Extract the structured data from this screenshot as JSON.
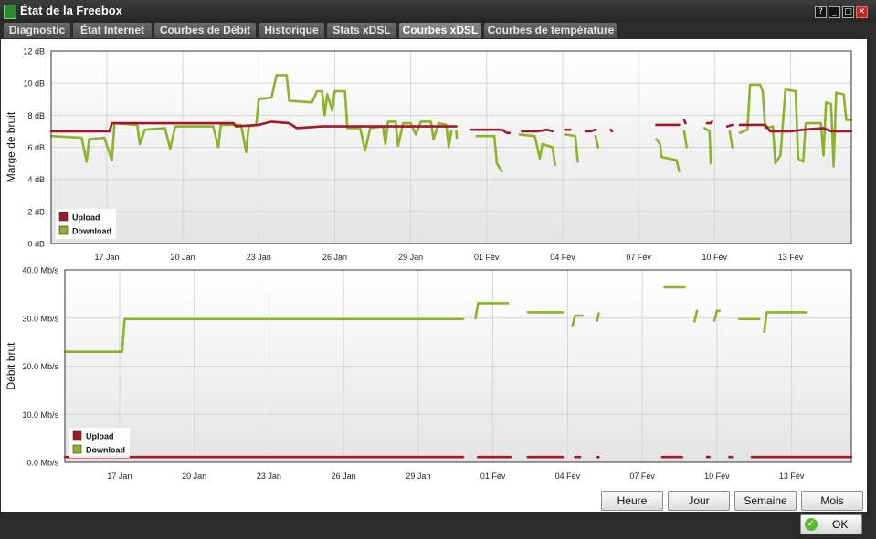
{
  "window": {
    "title": "État de la Freebox",
    "controls": [
      "?",
      "_",
      "□",
      "✕"
    ]
  },
  "tabs": [
    {
      "label": "Diagnostic",
      "active": false
    },
    {
      "label": "État Internet",
      "active": false
    },
    {
      "label": "Courbes de Débit",
      "active": false
    },
    {
      "label": "Historique",
      "active": false
    },
    {
      "label": "Stats xDSL",
      "active": false
    },
    {
      "label": "Courbes xDSL",
      "active": true
    },
    {
      "label": "Courbes de température",
      "active": false
    }
  ],
  "colors": {
    "upload": "#a3172a",
    "download": "#8db32a",
    "grid": "#d6d6d6"
  },
  "chart_data": [
    {
      "type": "line",
      "ylabel": "Marge de bruit",
      "ylim": [
        0,
        12
      ],
      "yticks": [
        "0 dB",
        "2 dB",
        "4 dB",
        "6 dB",
        "8 dB",
        "10 dB",
        "12 dB"
      ],
      "xlim": [
        14.8,
        46.4
      ],
      "xticks": [
        {
          "day": 17,
          "label": "17 Jan"
        },
        {
          "day": 20,
          "label": "20 Jan"
        },
        {
          "day": 23,
          "label": "23 Jan"
        },
        {
          "day": 26,
          "label": "26 Jan"
        },
        {
          "day": 29,
          "label": "29 Jan"
        },
        {
          "day": 32,
          "label": "01 Fév"
        },
        {
          "day": 35,
          "label": "04 Fév"
        },
        {
          "day": 38,
          "label": "07 Fév"
        },
        {
          "day": 41,
          "label": "10 Fév"
        },
        {
          "day": 44,
          "label": "13 Fév"
        }
      ],
      "legend": "bottom-left",
      "series": [
        {
          "name": "Upload",
          "segments": [
            [
              [
                14.8,
                7.0
              ],
              [
                17.1,
                7.0
              ],
              [
                17.2,
                7.5
              ],
              [
                22.0,
                7.5
              ],
              [
                22.1,
                7.3
              ],
              [
                23.0,
                7.4
              ],
              [
                23.5,
                7.6
              ],
              [
                24.2,
                7.5
              ],
              [
                24.5,
                7.2
              ],
              [
                25.5,
                7.3
              ],
              [
                30.8,
                7.3
              ]
            ],
            [
              [
                31.4,
                7.1
              ],
              [
                32.6,
                7.1
              ],
              [
                32.8,
                6.9
              ],
              [
                32.9,
                6.9
              ]
            ],
            [
              [
                33.4,
                7.0
              ],
              [
                34.0,
                7.0
              ],
              [
                34.4,
                7.1
              ],
              [
                34.6,
                7.0
              ]
            ],
            [
              [
                35.1,
                7.1
              ],
              [
                35.3,
                7.1
              ]
            ],
            [
              [
                35.9,
                7.0
              ],
              [
                36.1,
                7.0
              ],
              [
                36.3,
                7.1
              ]
            ],
            [
              [
                36.9,
                7.1
              ],
              [
                36.95,
                7.0
              ]
            ],
            [
              [
                38.7,
                7.4
              ],
              [
                39.6,
                7.4
              ]
            ],
            [
              [
                39.8,
                7.7
              ],
              [
                39.85,
                7.5
              ]
            ],
            [
              [
                40.7,
                7.5
              ],
              [
                40.85,
                7.5
              ],
              [
                40.9,
                7.6
              ]
            ],
            [
              [
                41.5,
                7.3
              ],
              [
                41.7,
                7.4
              ]
            ],
            [
              [
                42.0,
                7.4
              ],
              [
                43.0,
                7.4
              ],
              [
                43.2,
                7.0
              ],
              [
                44.0,
                7.0
              ],
              [
                44.5,
                7.1
              ],
              [
                45.3,
                7.2
              ],
              [
                45.6,
                7.0
              ],
              [
                46.4,
                7.0
              ]
            ]
          ]
        },
        {
          "name": "Download",
          "segments": [
            [
              [
                14.8,
                6.7
              ],
              [
                16.0,
                6.6
              ],
              [
                16.2,
                5.1
              ],
              [
                16.3,
                6.5
              ],
              [
                16.9,
                6.6
              ],
              [
                17.2,
                5.2
              ],
              [
                17.3,
                7.5
              ],
              [
                18.2,
                7.4
              ],
              [
                18.3,
                6.2
              ],
              [
                18.5,
                7.1
              ],
              [
                19.3,
                7.2
              ],
              [
                19.5,
                5.9
              ],
              [
                19.7,
                7.3
              ],
              [
                21.2,
                7.3
              ],
              [
                21.4,
                6.0
              ],
              [
                21.5,
                7.4
              ],
              [
                22.3,
                7.4
              ],
              [
                22.5,
                5.7
              ],
              [
                22.6,
                7.3
              ],
              [
                22.9,
                7.4
              ],
              [
                23.0,
                9.0
              ],
              [
                23.5,
                9.1
              ],
              [
                23.7,
                10.5
              ],
              [
                24.1,
                10.5
              ],
              [
                24.2,
                8.9
              ],
              [
                25.1,
                8.8
              ],
              [
                25.3,
                9.5
              ],
              [
                25.5,
                9.5
              ],
              [
                25.6,
                8.0
              ],
              [
                25.7,
                9.3
              ],
              [
                25.9,
                8.3
              ],
              [
                26.0,
                9.5
              ],
              [
                26.4,
                9.5
              ],
              [
                26.5,
                7.2
              ],
              [
                27.0,
                7.2
              ],
              [
                27.2,
                5.8
              ],
              [
                27.4,
                7.2
              ],
              [
                27.9,
                7.3
              ],
              [
                28.0,
                6.2
              ],
              [
                28.1,
                7.6
              ],
              [
                28.4,
                7.6
              ],
              [
                28.5,
                6.1
              ],
              [
                28.7,
                7.5
              ],
              [
                29.0,
                7.5
              ],
              [
                29.2,
                6.8
              ],
              [
                29.4,
                7.6
              ],
              [
                29.8,
                7.6
              ],
              [
                29.9,
                6.5
              ],
              [
                30.1,
                7.5
              ],
              [
                30.4,
                7.4
              ],
              [
                30.5,
                6.0
              ],
              [
                30.6,
                7.0
              ]
            ],
            [
              [
                30.8,
                7.0
              ],
              [
                30.82,
                6.6
              ]
            ],
            [
              [
                31.6,
                6.7
              ],
              [
                32.3,
                6.7
              ],
              [
                32.4,
                5.0
              ],
              [
                32.6,
                4.5
              ]
            ],
            [
              [
                33.3,
                6.8
              ],
              [
                33.9,
                6.7
              ],
              [
                34.1,
                5.3
              ],
              [
                34.2,
                6.2
              ],
              [
                34.6,
                6.0
              ],
              [
                34.7,
                4.9
              ]
            ],
            [
              [
                35.1,
                6.8
              ],
              [
                35.5,
                6.7
              ],
              [
                35.6,
                5.1
              ]
            ],
            [
              [
                36.3,
                6.7
              ],
              [
                36.4,
                6.0
              ]
            ],
            [
              [
                38.7,
                6.5
              ],
              [
                38.85,
                6.2
              ],
              [
                38.9,
                5.4
              ],
              [
                39.5,
                5.2
              ],
              [
                39.6,
                4.5
              ]
            ],
            [
              [
                39.8,
                7.0
              ],
              [
                39.9,
                6.0
              ]
            ],
            [
              [
                40.6,
                7.2
              ],
              [
                40.8,
                7.0
              ],
              [
                40.85,
                5.0
              ]
            ],
            [
              [
                41.6,
                7.0
              ],
              [
                41.7,
                6.0
              ]
            ],
            [
              [
                42.0,
                6.9
              ],
              [
                42.3,
                7.1
              ],
              [
                42.4,
                9.9
              ],
              [
                42.8,
                9.9
              ],
              [
                42.9,
                9.5
              ],
              [
                43.0,
                7.2
              ],
              [
                43.3,
                7.3
              ],
              [
                43.4,
                5.0
              ],
              [
                43.6,
                5.5
              ],
              [
                43.8,
                9.6
              ],
              [
                44.2,
                9.5
              ],
              [
                44.3,
                5.3
              ],
              [
                44.5,
                5.1
              ],
              [
                44.6,
                7.5
              ],
              [
                45.2,
                7.5
              ],
              [
                45.3,
                5.5
              ],
              [
                45.4,
                8.8
              ],
              [
                45.6,
                8.7
              ],
              [
                45.7,
                4.8
              ],
              [
                45.8,
                9.4
              ],
              [
                46.1,
                9.3
              ],
              [
                46.2,
                7.7
              ],
              [
                46.4,
                7.7
              ]
            ]
          ]
        }
      ]
    },
    {
      "type": "line",
      "ylabel": "Débit brut",
      "ylim": [
        0,
        40
      ],
      "yticks": [
        "0.0 Mb/s",
        "10.0 Mb/s",
        "20.0 Mb/s",
        "30.0 Mb/s",
        "40.0 Mb/s"
      ],
      "xlim": [
        14.8,
        46.4
      ],
      "xticks": [
        {
          "day": 17,
          "label": "17 Jan"
        },
        {
          "day": 20,
          "label": "20 Jan"
        },
        {
          "day": 23,
          "label": "23 Jan"
        },
        {
          "day": 26,
          "label": "26 Jan"
        },
        {
          "day": 29,
          "label": "29 Jan"
        },
        {
          "day": 32,
          "label": "01 Fév"
        },
        {
          "day": 35,
          "label": "04 Fév"
        },
        {
          "day": 38,
          "label": "07 Fév"
        },
        {
          "day": 41,
          "label": "10 Fév"
        },
        {
          "day": 44,
          "label": "13 Fév"
        }
      ],
      "legend": "bottom-left",
      "series": [
        {
          "name": "Upload",
          "segments": [
            [
              [
                14.8,
                1.1
              ],
              [
                30.8,
                1.1
              ]
            ],
            [
              [
                31.4,
                1.1
              ],
              [
                32.7,
                1.1
              ]
            ],
            [
              [
                33.4,
                1.1
              ],
              [
                34.8,
                1.1
              ]
            ],
            [
              [
                35.3,
                1.1
              ],
              [
                35.5,
                1.1
              ]
            ],
            [
              [
                36.2,
                1.1
              ],
              [
                36.25,
                1.1
              ]
            ],
            [
              [
                38.8,
                1.1
              ],
              [
                39.6,
                1.1
              ]
            ],
            [
              [
                40.6,
                1.1
              ],
              [
                40.7,
                1.1
              ]
            ],
            [
              [
                41.5,
                1.1
              ],
              [
                41.6,
                1.1
              ]
            ],
            [
              [
                42.4,
                1.1
              ],
              [
                46.4,
                1.1
              ]
            ]
          ]
        },
        {
          "name": "Download",
          "segments": [
            [
              [
                14.8,
                23.0
              ],
              [
                17.1,
                23.0
              ],
              [
                17.2,
                29.8
              ],
              [
                30.8,
                29.8
              ]
            ],
            [
              [
                31.3,
                30.0
              ],
              [
                31.4,
                33.1
              ],
              [
                32.6,
                33.1
              ]
            ],
            [
              [
                33.4,
                31.2
              ],
              [
                34.8,
                31.2
              ]
            ],
            [
              [
                35.2,
                28.5
              ],
              [
                35.3,
                30.5
              ],
              [
                35.6,
                30.5
              ]
            ],
            [
              [
                36.2,
                29.5
              ],
              [
                36.25,
                31.0
              ]
            ],
            [
              [
                38.9,
                36.4
              ],
              [
                39.7,
                36.4
              ]
            ],
            [
              [
                40.1,
                29.3
              ],
              [
                40.2,
                31.5
              ]
            ],
            [
              [
                40.9,
                29.5
              ],
              [
                41.0,
                31.5
              ],
              [
                41.1,
                31.5
              ]
            ],
            [
              [
                41.9,
                29.8
              ],
              [
                42.7,
                29.8
              ]
            ],
            [
              [
                42.9,
                27.2
              ],
              [
                43.0,
                31.2
              ],
              [
                44.6,
                31.2
              ]
            ]
          ]
        }
      ]
    }
  ],
  "buttons": [
    "Heure",
    "Jour",
    "Semaine",
    "Mois"
  ],
  "ok_label": "OK"
}
